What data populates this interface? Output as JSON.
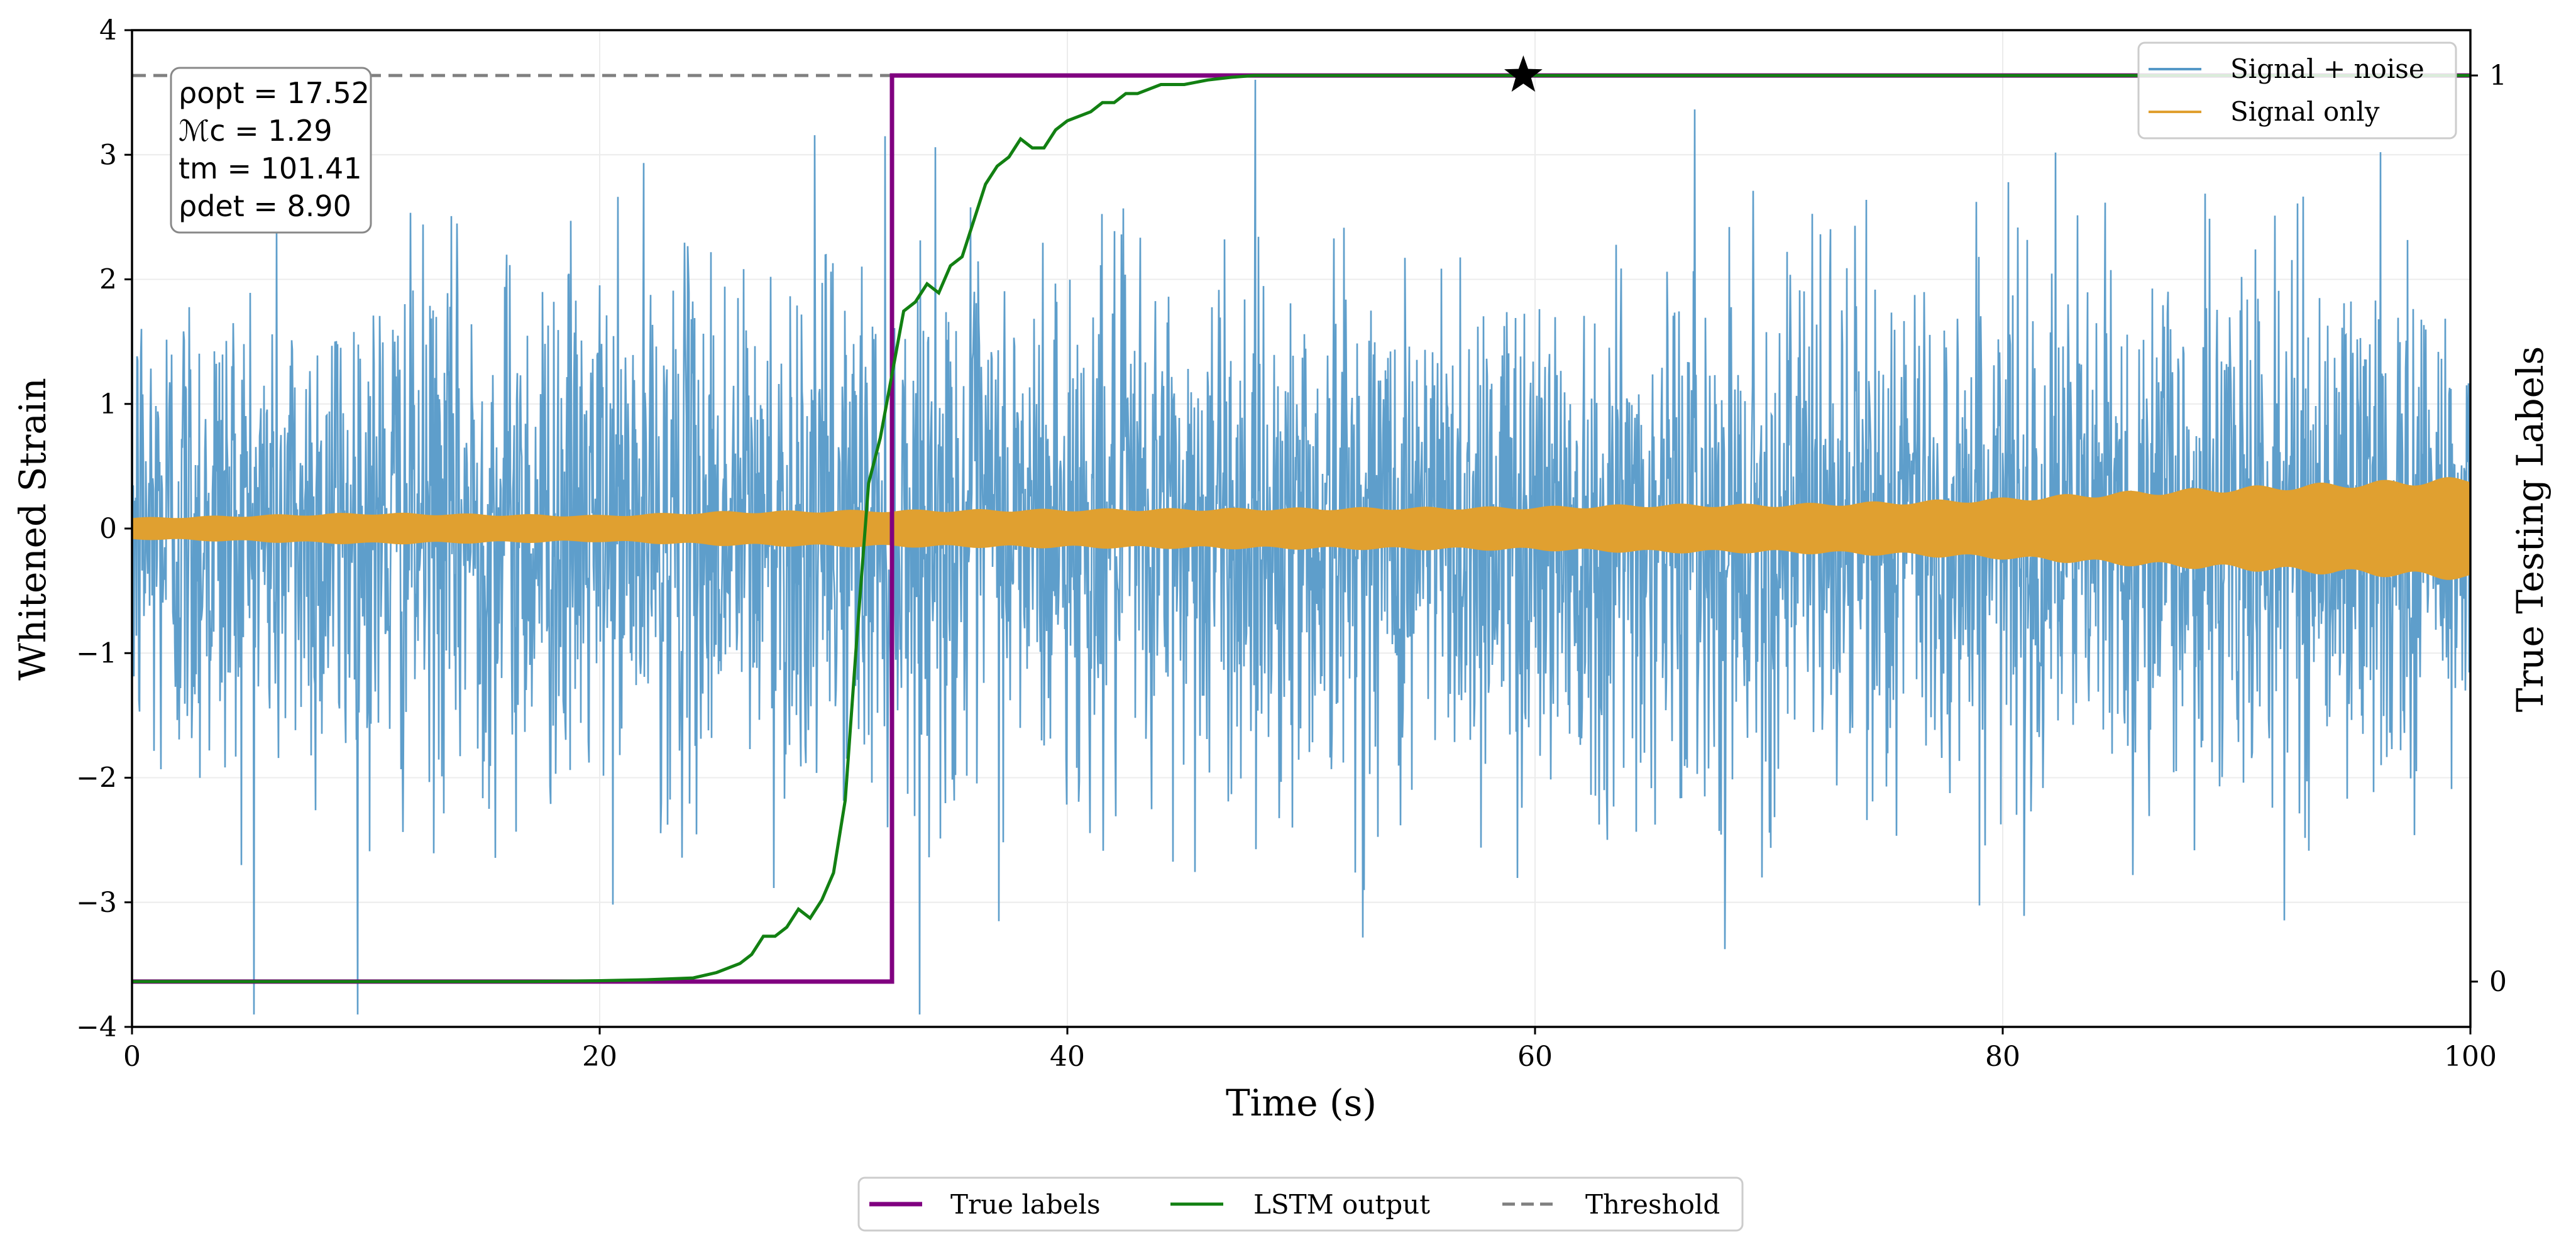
{
  "chart_data": {
    "type": "line",
    "xlabel": "Time (s)",
    "ylabel": "Whitened Strain",
    "ylabel_right": "True Testing Labels",
    "xlim": [
      0,
      100
    ],
    "ylim": [
      -4,
      4
    ],
    "ylim_right": [
      -0.05,
      1.05
    ],
    "x_ticks": [
      "0",
      "20",
      "40",
      "60",
      "80",
      "100"
    ],
    "y_ticks": [
      "4",
      "3",
      "2",
      "1",
      "0",
      "−1",
      "−2",
      "−3",
      "−4"
    ],
    "y_ticks_right": [
      "1",
      "0"
    ],
    "grid": true,
    "annotation": {
      "rho_opt": "ρopt = 17.52",
      "mchirp": "ℳc = 1.29",
      "t_m": "tm = 101.41",
      "rho_det": "ρdet = 8.90"
    },
    "upper_legend": [
      {
        "name": "Signal + noise",
        "color": "#5599c8"
      },
      {
        "name": "Signal only",
        "color": "#e0a030"
      }
    ],
    "lower_legend": [
      {
        "name": "True labels",
        "color": "#800080",
        "style": "solid"
      },
      {
        "name": "LSTM output",
        "color": "#128012",
        "style": "solid"
      },
      {
        "name": "Threshold",
        "color": "#808080",
        "style": "dashed"
      }
    ],
    "series": [
      {
        "name": "Signal + noise",
        "axis": "left",
        "color": "#5599c8",
        "description": "whitened strain noise roughly in [-3.9, 3.9], dense over 0–100 s"
      },
      {
        "name": "Signal only",
        "axis": "left",
        "color": "#e0a030",
        "envelope_x": [
          0,
          10,
          20,
          25,
          30,
          40,
          50,
          60,
          65,
          70,
          75,
          80,
          85,
          90,
          95,
          100
        ],
        "envelope_amp": [
          0.09,
          0.13,
          0.11,
          0.14,
          0.15,
          0.16,
          0.17,
          0.18,
          0.2,
          0.2,
          0.22,
          0.25,
          0.3,
          0.34,
          0.38,
          0.42
        ]
      },
      {
        "name": "True labels",
        "axis": "right",
        "color": "#800080",
        "x": [
          0,
          32.5,
          32.5,
          100
        ],
        "y": [
          0,
          0,
          1,
          1
        ]
      },
      {
        "name": "LSTM output",
        "axis": "right",
        "color": "#128012",
        "x": [
          0,
          5,
          10,
          15,
          17,
          20,
          22,
          24,
          25,
          26,
          26.5,
          27,
          27.5,
          28,
          28.5,
          29,
          29.5,
          30,
          30.5,
          31,
          31.5,
          32,
          32.5,
          33,
          33.5,
          34,
          34.5,
          35,
          35.5,
          36,
          36.5,
          37,
          37.5,
          38,
          38.5,
          39,
          39.5,
          40,
          41,
          41.5,
          42,
          42.5,
          43,
          44,
          45,
          46,
          47,
          48,
          50,
          52,
          55,
          60,
          70,
          80,
          90,
          100
        ],
        "y": [
          0,
          0,
          0,
          0,
          0,
          0.001,
          0.002,
          0.004,
          0.01,
          0.02,
          0.03,
          0.05,
          0.05,
          0.06,
          0.08,
          0.07,
          0.09,
          0.12,
          0.2,
          0.38,
          0.55,
          0.6,
          0.67,
          0.74,
          0.75,
          0.77,
          0.76,
          0.79,
          0.8,
          0.84,
          0.88,
          0.9,
          0.91,
          0.93,
          0.92,
          0.92,
          0.94,
          0.95,
          0.96,
          0.97,
          0.97,
          0.98,
          0.98,
          0.99,
          0.99,
          0.995,
          0.998,
          1.0,
          1.0,
          1.0,
          1.0,
          1.0,
          1.0,
          1.0,
          1.0,
          1.0
        ]
      },
      {
        "name": "Threshold",
        "axis": "right",
        "color": "#808080",
        "y_value": 1.0,
        "style": "dashed"
      }
    ],
    "marker": {
      "name": "detection-star",
      "x": 59.5,
      "y_right": 1.0,
      "symbol": "star",
      "color": "#000000"
    }
  }
}
